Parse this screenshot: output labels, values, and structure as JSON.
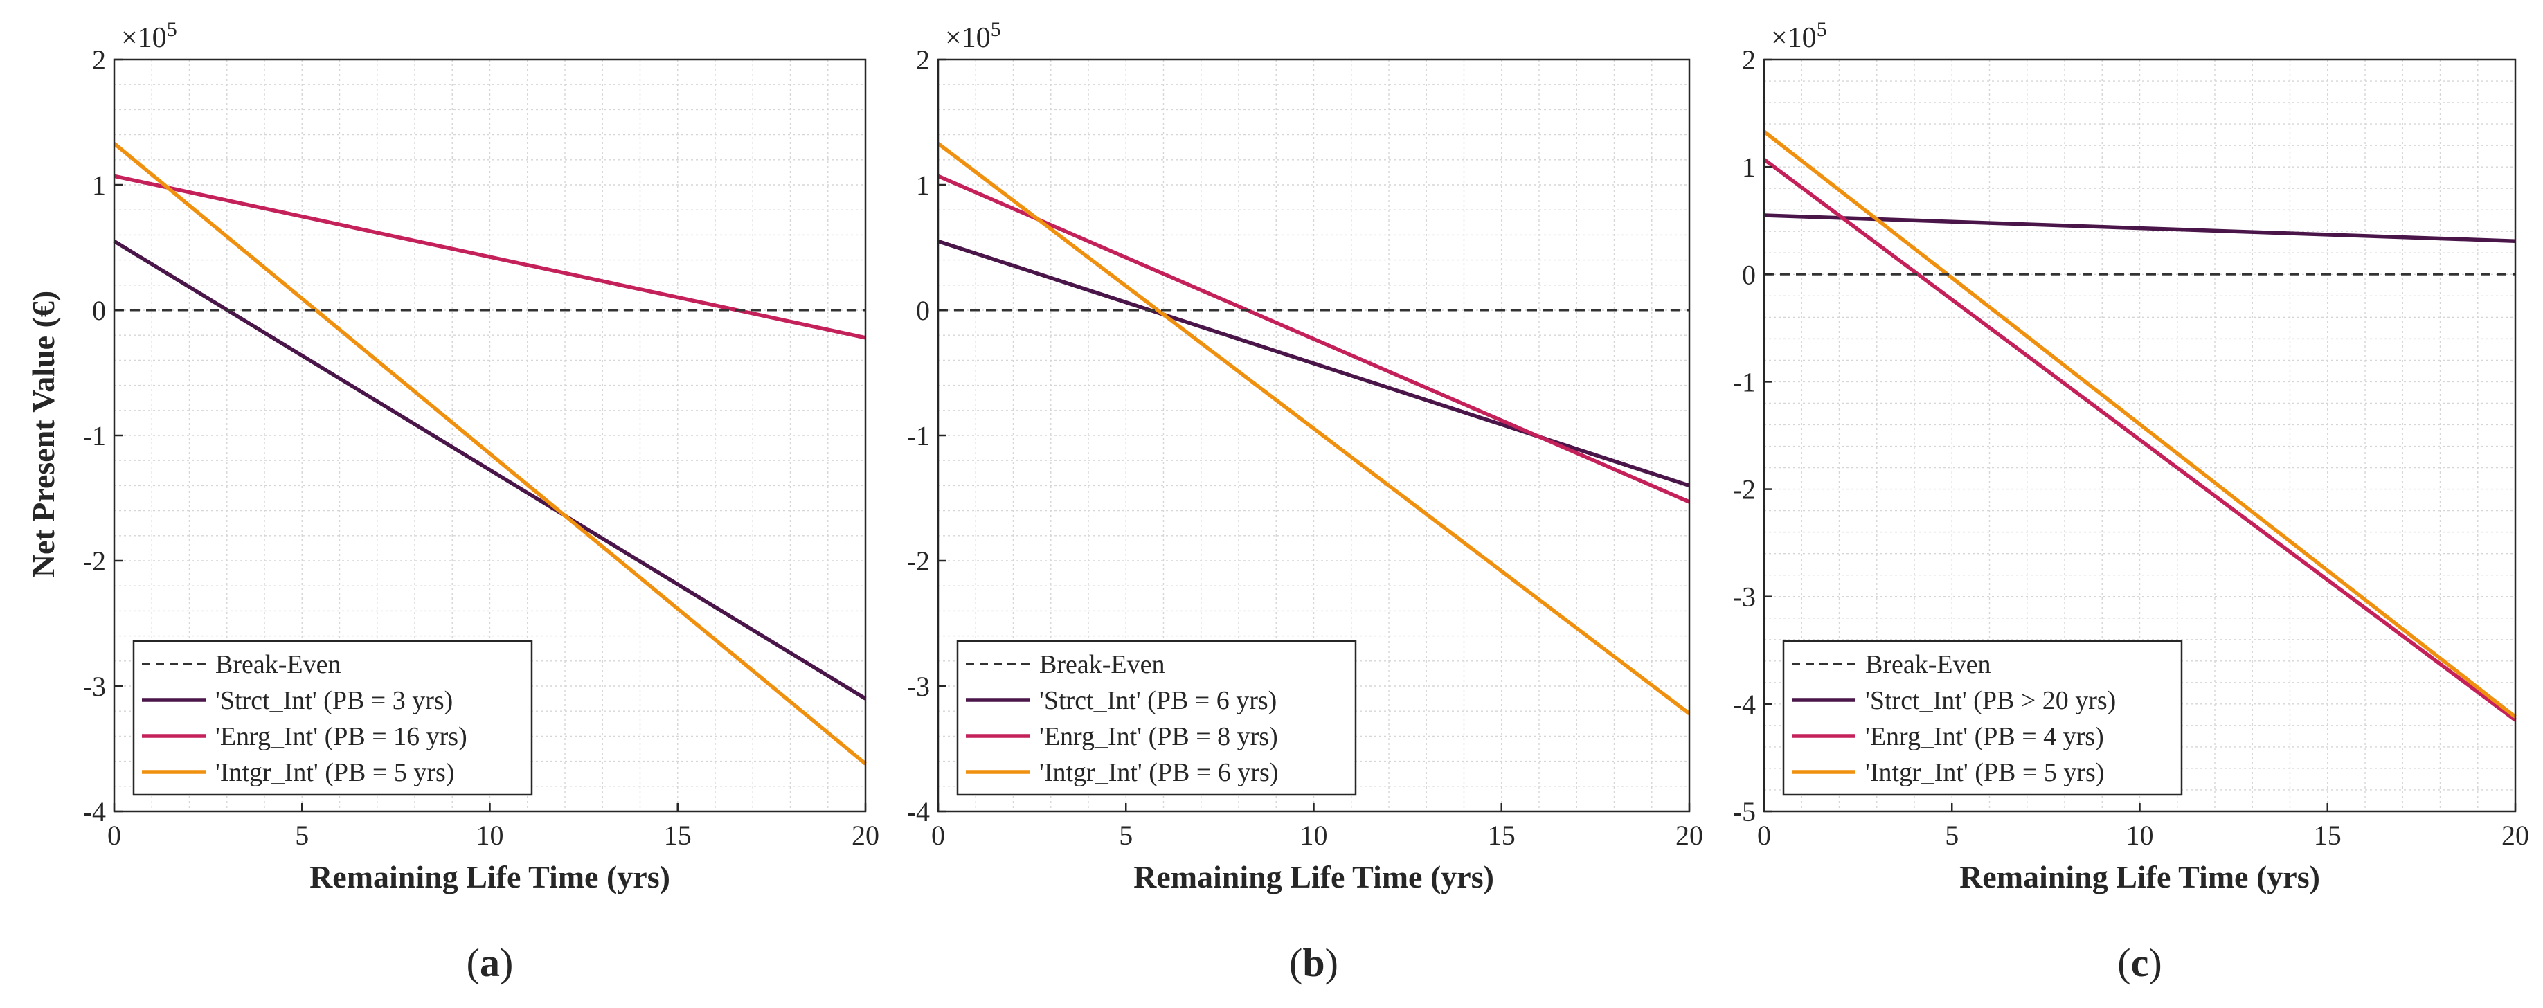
{
  "figure": {
    "ylabel": "Net Present Value (€)",
    "colors": {
      "strct": "#4a1549",
      "enrg": "#c4205a",
      "intgr": "#f0900f",
      "break_even": "#333333",
      "grid": "#d6d6d6",
      "axis": "#262626"
    }
  },
  "chart_data": [
    {
      "type": "line",
      "panel_label": "(a)",
      "label_parts": [
        "(",
        "a",
        ")"
      ],
      "xlabel": "Remaining Life Time (yrs)",
      "ylabel": "Net Present Value (€)",
      "y_multiplier": "×10",
      "y_exponent": "5",
      "xlim": [
        0,
        20
      ],
      "ylim": [
        -4,
        2
      ],
      "xticks": [
        0,
        5,
        10,
        15,
        20
      ],
      "yticks": [
        -4,
        -3,
        -2,
        -1,
        0,
        1,
        2
      ],
      "minor_x_step": 1,
      "minor_y_step": 0.2,
      "grid": true,
      "legend_position": "bottom-left",
      "break_even": {
        "name": "Break-Even",
        "y": 0
      },
      "series": [
        {
          "key": "strct",
          "name": "'Strct_Int' (PB = 3 yrs)",
          "x": [
            0,
            20
          ],
          "y": [
            0.55,
            -3.1
          ]
        },
        {
          "key": "enrg",
          "name": "'Enrg_Int' (PB = 16 yrs)",
          "x": [
            0,
            20
          ],
          "y": [
            1.07,
            -0.22
          ]
        },
        {
          "key": "intgr",
          "name": "'Intgr_Int' (PB = 5 yrs)",
          "x": [
            0,
            20
          ],
          "y": [
            1.33,
            -3.62
          ]
        }
      ]
    },
    {
      "type": "line",
      "panel_label": "(b)",
      "label_parts": [
        "(",
        "b",
        ")"
      ],
      "xlabel": "Remaining Life Time (yrs)",
      "ylabel": "",
      "y_multiplier": "×10",
      "y_exponent": "5",
      "xlim": [
        0,
        20
      ],
      "ylim": [
        -4,
        2
      ],
      "xticks": [
        0,
        5,
        10,
        15,
        20
      ],
      "yticks": [
        -4,
        -3,
        -2,
        -1,
        0,
        1,
        2
      ],
      "minor_x_step": 1,
      "minor_y_step": 0.2,
      "grid": true,
      "legend_position": "bottom-left",
      "break_even": {
        "name": "Break-Even",
        "y": 0
      },
      "series": [
        {
          "key": "strct",
          "name": "'Strct_Int' (PB = 6 yrs)",
          "x": [
            0,
            20
          ],
          "y": [
            0.55,
            -1.4
          ]
        },
        {
          "key": "enrg",
          "name": "'Enrg_Int' (PB = 8 yrs)",
          "x": [
            0,
            20
          ],
          "y": [
            1.07,
            -1.53
          ]
        },
        {
          "key": "intgr",
          "name": "'Intgr_Int' (PB = 6 yrs)",
          "x": [
            0,
            20
          ],
          "y": [
            1.33,
            -3.22
          ]
        }
      ]
    },
    {
      "type": "line",
      "panel_label": "(c)",
      "label_parts": [
        "(",
        "c",
        ")"
      ],
      "xlabel": "Remaining Life Time (yrs)",
      "ylabel": "",
      "y_multiplier": "×10",
      "y_exponent": "5",
      "xlim": [
        0,
        20
      ],
      "ylim": [
        -5,
        2
      ],
      "xticks": [
        0,
        5,
        10,
        15,
        20
      ],
      "yticks": [
        -5,
        -4,
        -3,
        -2,
        -1,
        0,
        1,
        2
      ],
      "minor_x_step": 1,
      "minor_y_step": 0.2,
      "grid": true,
      "legend_position": "bottom-left",
      "break_even": {
        "name": "Break-Even",
        "y": 0
      },
      "series": [
        {
          "key": "strct",
          "name": "'Strct_Int' (PB > 20 yrs)",
          "x": [
            0,
            20
          ],
          "y": [
            0.55,
            0.31
          ]
        },
        {
          "key": "enrg",
          "name": "'Enrg_Int' (PB = 4 yrs)",
          "x": [
            0,
            20
          ],
          "y": [
            1.07,
            -4.15
          ]
        },
        {
          "key": "intgr",
          "name": "'Intgr_Int' (PB = 5 yrs)",
          "x": [
            0,
            20
          ],
          "y": [
            1.33,
            -4.12
          ]
        }
      ]
    }
  ]
}
